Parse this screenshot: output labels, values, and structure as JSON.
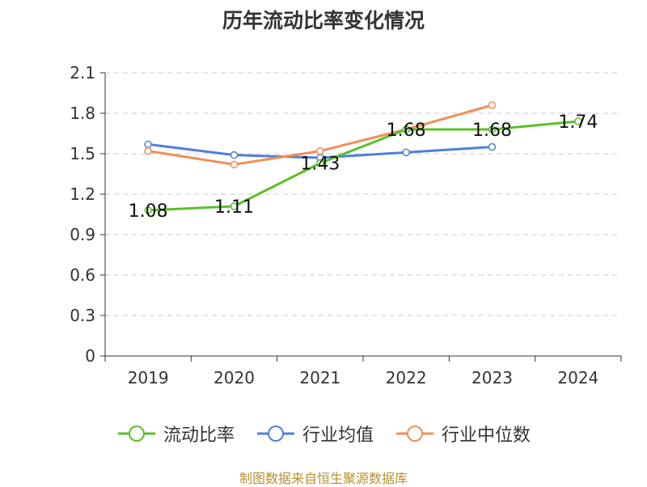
{
  "title": "历年流动比率变化情况",
  "source": "制图数据来自恒生聚源数据库",
  "chart_data": {
    "type": "line",
    "title": "历年流动比率变化情况",
    "categories": [
      "2019",
      "2020",
      "2021",
      "2022",
      "2023",
      "2024"
    ],
    "yticks": [
      "0",
      "0.3",
      "0.6",
      "0.9",
      "1.2",
      "1.5",
      "1.8",
      "2.1"
    ],
    "ylim": [
      0,
      2.1
    ],
    "grid": true,
    "legend_position": "bottom",
    "series": [
      {
        "name": "流动比率",
        "color": "#5cbf2a",
        "values": [
          1.08,
          1.11,
          1.43,
          1.68,
          1.68,
          1.74
        ],
        "labels": [
          "1.08",
          "1.11",
          "1.43",
          "1.68",
          "1.68",
          "1.74"
        ]
      },
      {
        "name": "行业均值",
        "color": "#4f7fdc",
        "values": [
          1.57,
          1.49,
          1.47,
          1.51,
          1.55,
          null
        ],
        "labels": []
      },
      {
        "name": "行业中位数",
        "color": "#f28f56",
        "values": [
          1.52,
          1.42,
          1.52,
          1.68,
          1.86,
          null
        ],
        "labels": []
      }
    ]
  }
}
